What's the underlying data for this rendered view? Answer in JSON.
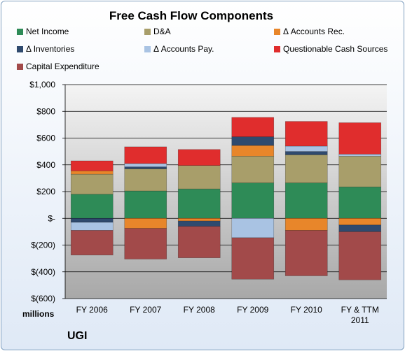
{
  "chart_data": {
    "type": "bar",
    "stacked": true,
    "title": "Free Cash Flow Components",
    "company": "UGI",
    "unit_label": "millions",
    "categories": [
      "FY 2006",
      "FY 2007",
      "FY 2008",
      "FY 2009",
      "FY 2010",
      "FY & TTM 2011"
    ],
    "category_lines": [
      [
        "FY 2006"
      ],
      [
        "FY 2007"
      ],
      [
        "FY 2008"
      ],
      [
        "FY 2009"
      ],
      [
        "FY 2010"
      ],
      [
        "FY & TTM",
        "2011"
      ]
    ],
    "ylim": [
      -600,
      1000
    ],
    "yticks": [
      1000,
      800,
      600,
      400,
      200,
      0,
      -200,
      -400,
      -600
    ],
    "ytick_labels": [
      "$1,000",
      "$800",
      "$600",
      "$400",
      "$200",
      "$-",
      "$(200)",
      "$(400)",
      "$(600)"
    ],
    "grid": true,
    "legend_position": "top",
    "series": [
      {
        "name": "Net Income",
        "color": "#2e8b57",
        "values": [
          180,
          205,
          220,
          265,
          265,
          235
        ]
      },
      {
        "name": "D&A",
        "color": "#a89e6a",
        "values": [
          150,
          165,
          175,
          200,
          210,
          230
        ]
      },
      {
        "name": "Δ Accounts Rec.",
        "color": "#e8862a",
        "values": [
          25,
          -75,
          -20,
          80,
          -90,
          -50
        ]
      },
      {
        "name": "Δ Inventories",
        "color": "#2f4a6e",
        "values": [
          -30,
          15,
          -40,
          65,
          25,
          -50
        ]
      },
      {
        "name": "Δ Accounts Pay.",
        "color": "#a9c3e3",
        "values": [
          -60,
          25,
          0,
          -145,
          40,
          15
        ]
      },
      {
        "name": "Questionable Cash Sources",
        "color": "#e02d2d",
        "values": [
          75,
          125,
          120,
          145,
          185,
          235
        ]
      },
      {
        "name": "Capital Expenditure",
        "color": "#a24a4a",
        "values": [
          -185,
          -230,
          -235,
          -310,
          -340,
          -360
        ]
      }
    ]
  }
}
